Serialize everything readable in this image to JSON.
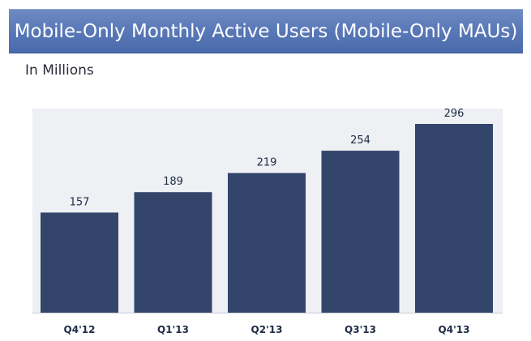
{
  "header": {
    "title": "Mobile-Only Monthly Active Users (Mobile-Only MAUs)",
    "subtitle": "In Millions"
  },
  "colors": {
    "banner": "#5a79b8",
    "bar": "#33456b",
    "plot_background": "#eef0f4"
  },
  "chart_data": {
    "type": "bar",
    "title": "Mobile-Only Monthly Active Users (Mobile-Only MAUs)",
    "subtitle": "In Millions",
    "categories": [
      "Q4'12",
      "Q1'13",
      "Q2'13",
      "Q3'13",
      "Q4'13"
    ],
    "values": [
      157,
      189,
      219,
      254,
      296
    ],
    "data_labels": [
      "157",
      "189",
      "219",
      "254",
      "296"
    ],
    "xlabel": "",
    "ylabel": "",
    "ylim": [
      0,
      330
    ],
    "grid": false,
    "legend": "none"
  }
}
